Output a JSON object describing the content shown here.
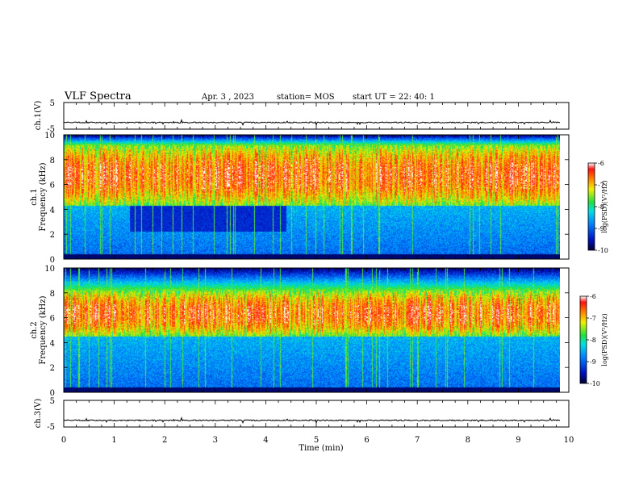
{
  "header": {
    "title": "VLF Spectra",
    "date": "Apr. 3  , 2023",
    "station": "station= MOS",
    "start_time": "start  UT  =   22: 40: 1"
  },
  "chart_data": [
    {
      "type": "line",
      "panel": "ch1-voltage",
      "ylabel": "ch.1(V)",
      "ylim": [
        -5,
        5
      ],
      "yticks": [
        "5",
        "-5"
      ],
      "x_range_min": [
        0,
        9.83
      ],
      "baseline_v": -2.5
    },
    {
      "type": "heatmap",
      "panel": "ch1-spectrogram",
      "ylabel_lines": [
        "ch.1",
        "Frequency  (kHz)"
      ],
      "ylim": [
        0,
        10
      ],
      "yticks": [
        "0",
        "2",
        "4",
        "6",
        "8",
        "10"
      ],
      "colorbar": {
        "label": "log(PSD)(V²/Hz)",
        "ticks": [
          "-6",
          "-7",
          "-8",
          "-9",
          "-10"
        ],
        "range": [
          -10,
          -6
        ]
      },
      "dominant_band_khz": [
        4.3,
        9.2
      ],
      "dark_gap_min": [
        1.3,
        4.4
      ],
      "dark_gap_khz": [
        2.2,
        4.3
      ]
    },
    {
      "type": "heatmap",
      "panel": "ch2-spectrogram",
      "ylabel_lines": [
        "ch.2",
        "Frequency  (kHz)"
      ],
      "ylim": [
        0,
        10
      ],
      "yticks": [
        "0",
        "2",
        "4",
        "6",
        "8",
        "10"
      ],
      "colorbar": {
        "label": "log(PSD)(V²/Hz)",
        "ticks": [
          "-6",
          "-7",
          "-8",
          "-9",
          "-10"
        ],
        "range": [
          -10,
          -6
        ]
      },
      "dominant_band_khz": [
        4.5,
        8.2
      ]
    },
    {
      "type": "line",
      "panel": "ch3-voltage",
      "ylabel": "ch.3(V)",
      "ylim": [
        -5,
        5
      ],
      "yticks": [
        "5",
        "-5"
      ],
      "x_range_min": [
        0,
        9.83
      ],
      "baseline_v": -2.5
    }
  ],
  "xaxis": {
    "label": "Time  (min)",
    "xlim": [
      0,
      10
    ],
    "ticks": [
      "0",
      "1",
      "2",
      "3",
      "4",
      "5",
      "6",
      "7",
      "8",
      "9",
      "10"
    ]
  }
}
